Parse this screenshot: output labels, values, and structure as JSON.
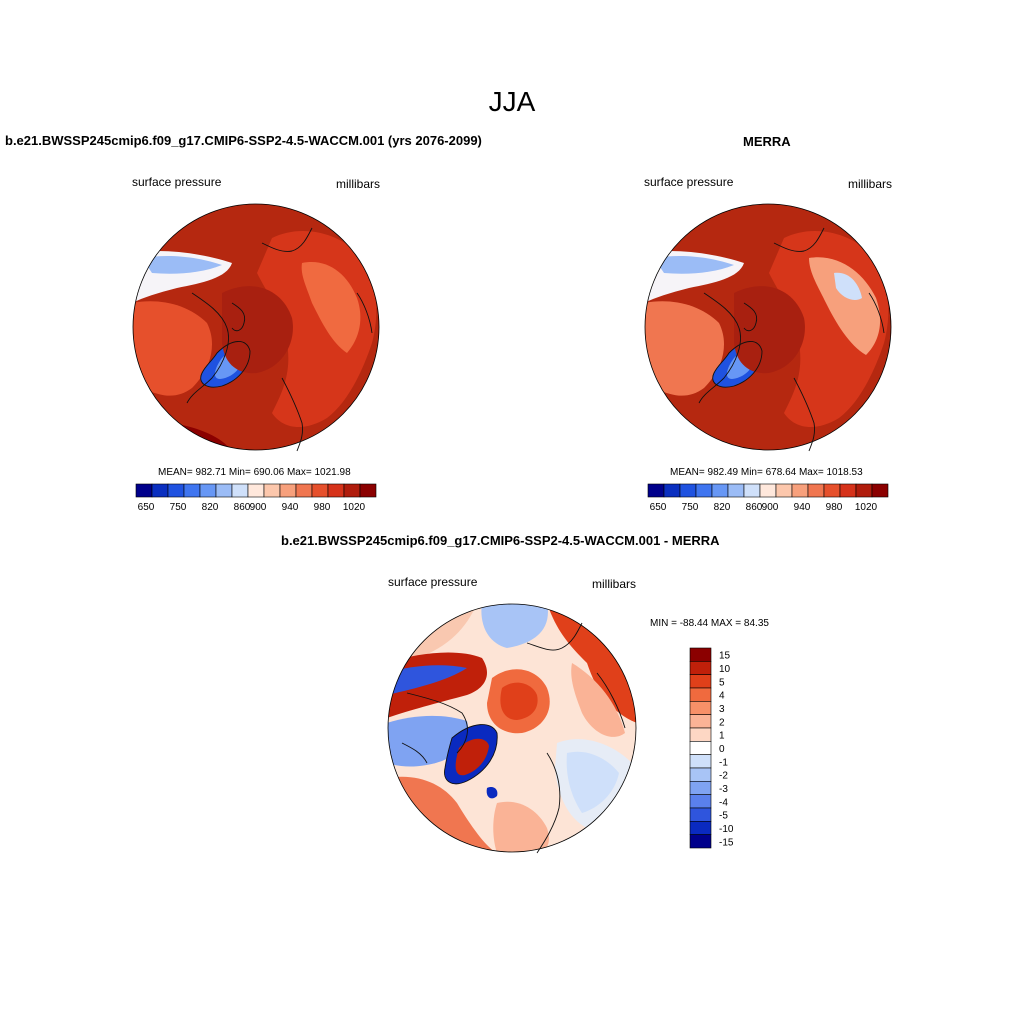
{
  "title": "JJA",
  "panels": [
    {
      "title": "b.e21.BWSSP245cmip6.f09_g17.CMIP6-SSP2-4.5-WACCM.001 (yrs 2076-2099)",
      "left_label": "surface pressure",
      "right_label": "millibars",
      "stats": "MEAN= 982.71  Min= 690.06  Max= 1021.98",
      "colorbar_labels": [
        "650",
        "750",
        "820",
        "860",
        "900",
        "940",
        "980",
        "1020"
      ]
    },
    {
      "title": "MERRA",
      "left_label": "surface pressure",
      "right_label": "millibars",
      "stats": "MEAN= 982.49  Min= 678.64  Max= 1018.53",
      "colorbar_labels": [
        "650",
        "750",
        "820",
        "860",
        "900",
        "940",
        "980",
        "1020"
      ]
    },
    {
      "title": "b.e21.BWSSP245cmip6.f09_g17.CMIP6-SSP2-4.5-WACCM.001 - MERRA",
      "left_label": "surface pressure",
      "right_label": "millibars",
      "stats": "MIN = -88.44 MAX =  84.35",
      "colorbar_labels": [
        "15",
        "10",
        "5",
        "4",
        "3",
        "2",
        "1",
        "0",
        "-1",
        "-2",
        "-3",
        "-4",
        "-5",
        "-10",
        "-15"
      ]
    }
  ],
  "colors": {
    "abs_scale": [
      "#00008b",
      "#0a2fc0",
      "#1f52e0",
      "#3f75f0",
      "#6797f5",
      "#9bbcf6",
      "#cfe0fa",
      "#ffe8dc",
      "#fcc7ac",
      "#f7a07c",
      "#f07650",
      "#e6502c",
      "#d6321a",
      "#b01c0c",
      "#8b0000"
    ],
    "diff_scale": [
      "#8b0000",
      "#c0200a",
      "#e0401a",
      "#f06a3e",
      "#f79068",
      "#fab396",
      "#fdd7c4",
      "#ffffff",
      "#cfe0fa",
      "#a8c4f6",
      "#7fa3f2",
      "#5a80ec",
      "#2f55dd",
      "#0a2ac0",
      "#00008b"
    ],
    "land_outline": "#000000"
  }
}
